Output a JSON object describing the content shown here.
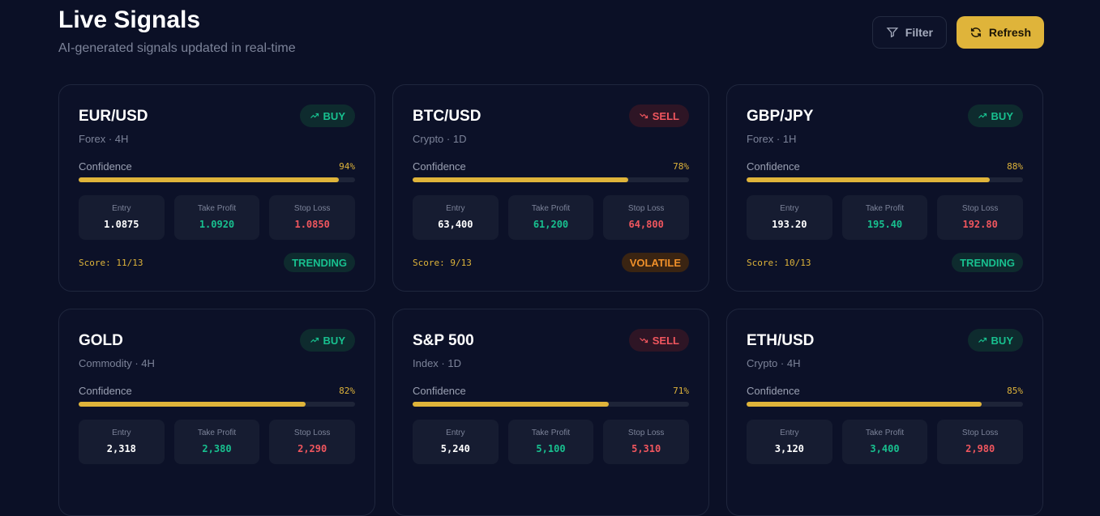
{
  "header": {
    "title": "Live Signals",
    "subtitle": "AI-generated signals updated in real-time",
    "filter": "Filter",
    "refresh": "Refresh"
  },
  "labels": {
    "confidence": "Confidence",
    "entry": "Entry",
    "take_profit": "Take Profit",
    "stop_loss": "Stop Loss"
  },
  "cards": [
    {
      "pair": "EUR/USD",
      "direction": "BUY",
      "meta": "Forex · 4H",
      "confidence": {
        "value": 94,
        "label": "94%"
      },
      "entry": "1.0875",
      "take_profit": "1.0920",
      "stop_loss": "1.0850",
      "score": "Score: 11/13",
      "tag": "TRENDING"
    },
    {
      "pair": "BTC/USD",
      "direction": "SELL",
      "meta": "Crypto · 1D",
      "confidence": {
        "value": 78,
        "label": "78%"
      },
      "entry": "63,400",
      "take_profit": "61,200",
      "stop_loss": "64,800",
      "score": "Score: 9/13",
      "tag": "VOLATILE"
    },
    {
      "pair": "GBP/JPY",
      "direction": "BUY",
      "meta": "Forex · 1H",
      "confidence": {
        "value": 88,
        "label": "88%"
      },
      "entry": "193.20",
      "take_profit": "195.40",
      "stop_loss": "192.80",
      "score": "Score: 10/13",
      "tag": "TRENDING"
    },
    {
      "pair": "GOLD",
      "direction": "BUY",
      "meta": "Commodity · 4H",
      "confidence": {
        "value": 82,
        "label": "82%"
      },
      "entry": "2,318",
      "take_profit": "2,380",
      "stop_loss": "2,290"
    },
    {
      "pair": "S&P 500",
      "direction": "SELL",
      "meta": "Index · 1D",
      "confidence": {
        "value": 71,
        "label": "71%"
      },
      "entry": "5,240",
      "take_profit": "5,100",
      "stop_loss": "5,310"
    },
    {
      "pair": "ETH/USD",
      "direction": "BUY",
      "meta": "Crypto · 4H",
      "confidence": {
        "value": 85,
        "label": "85%"
      },
      "entry": "3,120",
      "take_profit": "3,400",
      "stop_loss": "2,980"
    }
  ]
}
